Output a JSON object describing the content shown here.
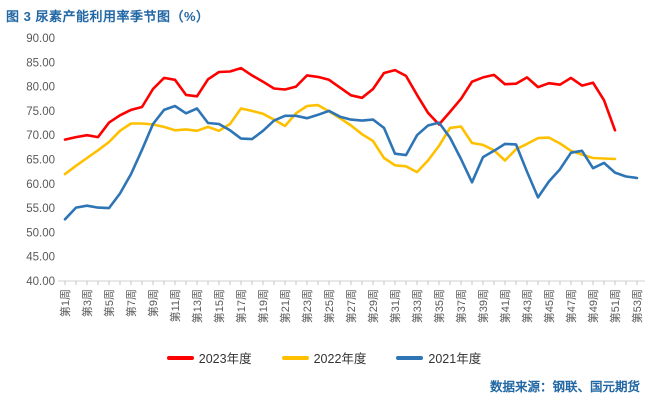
{
  "page": {
    "title": "图 3 尿素产能利用率季节图（%）",
    "source": "数据来源：钢联、国元期货"
  },
  "chart_data": {
    "type": "line",
    "title": "图 3 尿素产能利用率季节图（%）",
    "grid": false,
    "legend_position": "bottom",
    "ylim": [
      40,
      90
    ],
    "y_tick_step": 5,
    "y_tick_labels": [
      "90.00",
      "85.00",
      "80.00",
      "75.00",
      "70.00",
      "65.00",
      "60.00",
      "55.00",
      "50.00",
      "45.00",
      "40.00"
    ],
    "x_weeks_total": 53,
    "x_tick_labels": [
      "第1周",
      "第3周",
      "第5周",
      "第7周",
      "第9周",
      "第11周",
      "第13周",
      "第15周",
      "第17周",
      "第19周",
      "第21周",
      "第23周",
      "第25周",
      "第27周",
      "第29周",
      "第31周",
      "第33周",
      "第35周",
      "第37周",
      "第39周",
      "第41周",
      "第43周",
      "第45周",
      "第47周",
      "第49周",
      "第51周",
      "第53周"
    ],
    "axis_color": "#d9d9d9",
    "tick_color": "#c6c6c6",
    "axis_label_color": "#595959",
    "series": [
      {
        "name": "2023年度",
        "color": "#fe0000",
        "start_week": 1,
        "values": [
          69.1,
          69.6,
          70.0,
          69.6,
          72.6,
          74.1,
          75.2,
          75.8,
          79.5,
          81.8,
          81.4,
          78.3,
          78.0,
          81.5,
          83.0,
          83.1,
          83.8,
          82.3,
          81.0,
          79.6,
          79.4,
          80.0,
          82.3,
          82.0,
          81.4,
          79.8,
          78.2,
          77.7,
          79.5,
          82.8,
          83.4,
          82.2,
          78.3,
          74.6,
          72.2,
          74.8,
          77.5,
          81.0,
          81.9,
          82.4,
          80.5,
          80.6,
          81.9,
          79.9,
          80.7,
          80.4,
          81.8,
          80.2,
          80.8,
          77.2,
          71.0
        ]
      },
      {
        "name": "2022年度",
        "color": "#ffc000",
        "start_week": 1,
        "values": [
          62.0,
          63.7,
          65.3,
          66.9,
          68.6,
          70.9,
          72.4,
          72.4,
          72.2,
          71.7,
          71.0,
          71.2,
          70.9,
          71.7,
          70.9,
          72.3,
          75.5,
          75.0,
          74.4,
          73.2,
          71.9,
          74.5,
          76.0,
          76.2,
          74.9,
          73.5,
          72.0,
          70.2,
          68.8,
          65.3,
          63.8,
          63.6,
          62.4,
          64.8,
          67.8,
          71.5,
          71.8,
          68.4,
          68.0,
          66.9,
          64.8,
          67.1,
          68.2,
          69.4,
          69.5,
          68.3,
          66.8,
          66.0,
          65.3,
          65.2,
          65.1
        ]
      },
      {
        "name": "2021年度",
        "color": "#2e75b6",
        "start_week": 1,
        "values": [
          52.7,
          55.1,
          55.5,
          55.1,
          55.0,
          58.0,
          62.0,
          67.0,
          72.3,
          75.2,
          76.0,
          74.5,
          75.5,
          72.5,
          72.3,
          71.0,
          69.3,
          69.2,
          70.9,
          73.0,
          74.0,
          74.0,
          73.5,
          74.2,
          75.0,
          73.8,
          73.2,
          73.0,
          73.2,
          71.5,
          66.2,
          65.9,
          70.0,
          72.0,
          72.6,
          69.5,
          65.1,
          60.3,
          65.5,
          66.8,
          68.2,
          68.1,
          62.5,
          57.2,
          60.5,
          63.0,
          66.4,
          66.8,
          63.2,
          64.3,
          62.3,
          61.5,
          61.2
        ]
      }
    ]
  }
}
